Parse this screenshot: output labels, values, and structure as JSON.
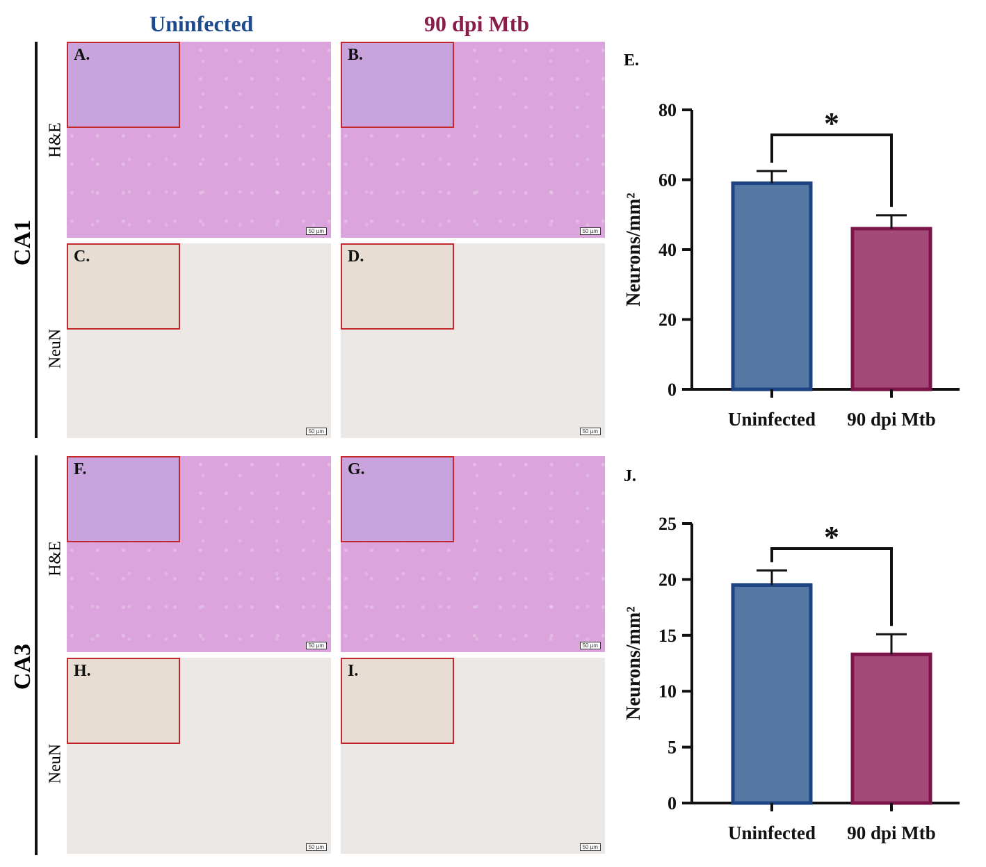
{
  "columns": {
    "uninfected": "Uninfected",
    "infected": "90 dpi Mtb"
  },
  "colors": {
    "uninfected": "#1f4a8c",
    "infected": "#8a1c4a",
    "inset_border": "#c0282d"
  },
  "rows": {
    "ca1": "CA1",
    "ca3": "CA3"
  },
  "stains": {
    "he": "H&E",
    "neun": "NeuN"
  },
  "panels": {
    "A": "A.",
    "B": "B.",
    "C": "C.",
    "D": "D.",
    "F": "F.",
    "G": "G.",
    "H": "H.",
    "I": "I."
  },
  "scale_bar": "50 µm",
  "graphs": {
    "E": "E.",
    "J": "J."
  },
  "chart_data": [
    {
      "type": "bar",
      "panel": "E.",
      "categories": [
        "Uninfected",
        "90 dpi Mtb"
      ],
      "values": [
        59,
        46
      ],
      "errors": [
        3.5,
        3.8
      ],
      "ylabel": "Neurons/mm²",
      "ylim": [
        0,
        80
      ],
      "yticks": [
        0,
        20,
        40,
        60,
        80
      ],
      "significance": "*",
      "colors": {
        "fill": [
          "#5577a4",
          "#a44a78"
        ],
        "stroke": [
          "#1d4383",
          "#7b1448"
        ]
      }
    },
    {
      "type": "bar",
      "panel": "J.",
      "categories": [
        "Uninfected",
        "90 dpi Mtb"
      ],
      "values": [
        19.5,
        13.3
      ],
      "errors": [
        1.3,
        1.8
      ],
      "ylabel": "Neurons/mm²",
      "ylim": [
        0,
        25
      ],
      "yticks": [
        0,
        5,
        10,
        15,
        20,
        25
      ],
      "significance": "*",
      "colors": {
        "fill": [
          "#5577a4",
          "#a44a78"
        ],
        "stroke": [
          "#1d4383",
          "#7b1448"
        ]
      }
    }
  ]
}
